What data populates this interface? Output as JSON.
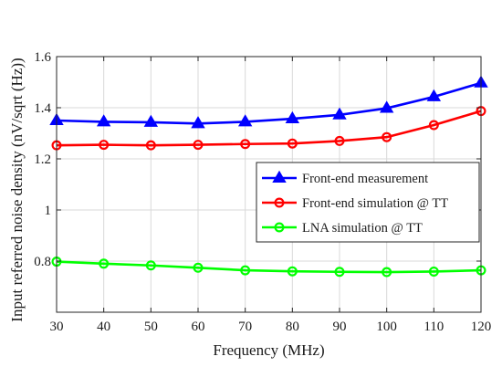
{
  "chart_data": {
    "type": "line",
    "title": "",
    "xlabel": "Frequency (MHz)",
    "ylabel": "Input referred noise density (nV/sqrt (Hz))",
    "xlim": [
      30,
      120
    ],
    "ylim": [
      0.6,
      1.6
    ],
    "x_ticks": [
      30,
      40,
      50,
      60,
      70,
      80,
      90,
      100,
      110,
      120
    ],
    "x_tick_labels": [
      "30",
      "40",
      "50",
      "60",
      "70",
      "80",
      "90",
      "100",
      "110",
      "120"
    ],
    "y_ticks": [
      0.8,
      1.0,
      1.2,
      1.4,
      1.6
    ],
    "y_tick_labels": [
      "0.8",
      "1",
      "1.2",
      "1.4",
      "1.6"
    ],
    "grid": true,
    "legend_position": "center-right",
    "x": [
      30,
      40,
      50,
      60,
      70,
      80,
      90,
      100,
      110,
      120
    ],
    "series": [
      {
        "name": "Front-end measurement",
        "color": "#0000ff",
        "marker": "triangle",
        "values": [
          1.35,
          1.345,
          1.343,
          1.338,
          1.345,
          1.357,
          1.372,
          1.398,
          1.443,
          1.497
        ]
      },
      {
        "name": "Front-end simulation @ TT",
        "color": "#ff0000",
        "marker": "circle",
        "values": [
          1.253,
          1.255,
          1.253,
          1.255,
          1.258,
          1.26,
          1.27,
          1.285,
          1.332,
          1.387
        ]
      },
      {
        "name": "LNA simulation @ TT",
        "color": "#00ff00",
        "marker": "circle",
        "values": [
          0.798,
          0.79,
          0.783,
          0.774,
          0.764,
          0.76,
          0.758,
          0.757,
          0.759,
          0.764
        ]
      }
    ]
  }
}
